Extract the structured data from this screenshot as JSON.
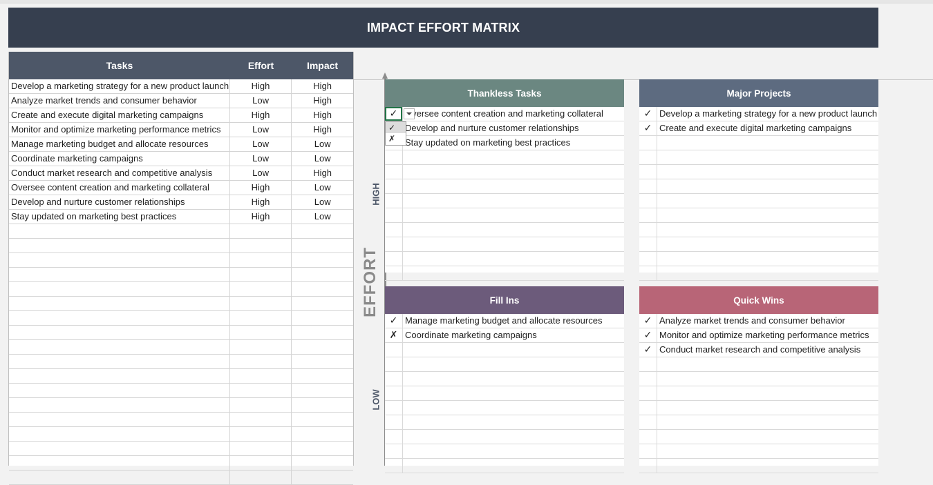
{
  "title": "IMPACT EFFORT MATRIX",
  "table": {
    "headers": {
      "task": "Tasks",
      "effort": "Effort",
      "impact": "Impact"
    },
    "rows": [
      {
        "task": "Develop a marketing strategy for a new product launch",
        "effort": "High",
        "impact": "High"
      },
      {
        "task": "Analyze market trends and consumer behavior",
        "effort": "Low",
        "impact": "High"
      },
      {
        "task": "Create and execute digital marketing campaigns",
        "effort": "High",
        "impact": "High"
      },
      {
        "task": "Monitor and optimize marketing performance metrics",
        "effort": "Low",
        "impact": "High"
      },
      {
        "task": "Manage marketing budget and allocate resources",
        "effort": "Low",
        "impact": "Low"
      },
      {
        "task": "Coordinate marketing campaigns",
        "effort": "Low",
        "impact": "Low"
      },
      {
        "task": "Conduct market research and competitive analysis",
        "effort": "Low",
        "impact": "High"
      },
      {
        "task": "Oversee content creation and marketing collateral",
        "effort": "High",
        "impact": "Low"
      },
      {
        "task": "Develop and nurture customer relationships",
        "effort": "High",
        "impact": "Low"
      },
      {
        "task": "Stay updated on marketing best practices",
        "effort": "High",
        "impact": "Low"
      },
      {
        "task": "",
        "effort": "",
        "impact": ""
      },
      {
        "task": "",
        "effort": "",
        "impact": ""
      },
      {
        "task": "",
        "effort": "",
        "impact": ""
      },
      {
        "task": "",
        "effort": "",
        "impact": ""
      },
      {
        "task": "",
        "effort": "",
        "impact": ""
      },
      {
        "task": "",
        "effort": "",
        "impact": ""
      },
      {
        "task": "",
        "effort": "",
        "impact": ""
      },
      {
        "task": "",
        "effort": "",
        "impact": ""
      },
      {
        "task": "",
        "effort": "",
        "impact": ""
      },
      {
        "task": "",
        "effort": "",
        "impact": ""
      },
      {
        "task": "",
        "effort": "",
        "impact": ""
      },
      {
        "task": "",
        "effort": "",
        "impact": ""
      },
      {
        "task": "",
        "effort": "",
        "impact": ""
      },
      {
        "task": "",
        "effort": "",
        "impact": ""
      },
      {
        "task": "",
        "effort": "",
        "impact": ""
      },
      {
        "task": "",
        "effort": "",
        "impact": ""
      },
      {
        "task": "",
        "effort": "",
        "impact": ""
      },
      {
        "task": "",
        "effort": "",
        "impact": ""
      }
    ]
  },
  "axis": {
    "label": "EFFORT",
    "high": "HIGH",
    "low": "LOW"
  },
  "quadrants": {
    "thankless": {
      "title": "Thankless Tasks",
      "color": "#6b8781",
      "rows": [
        {
          "mark": "✓",
          "text": "Oversee content creation and marketing collateral"
        },
        {
          "mark": "",
          "text": "Develop and nurture customer relationships"
        },
        {
          "mark": "",
          "text": "Stay updated on marketing best practices"
        },
        {
          "mark": "",
          "text": ""
        },
        {
          "mark": "",
          "text": ""
        },
        {
          "mark": "",
          "text": ""
        },
        {
          "mark": "",
          "text": ""
        },
        {
          "mark": "",
          "text": ""
        },
        {
          "mark": "",
          "text": ""
        },
        {
          "mark": "",
          "text": ""
        },
        {
          "mark": "",
          "text": ""
        },
        {
          "mark": "",
          "text": ""
        }
      ]
    },
    "major": {
      "title": "Major Projects",
      "color": "#5d6b80",
      "rows": [
        {
          "mark": "✓",
          "text": "Develop a marketing strategy for a new product launch"
        },
        {
          "mark": "✓",
          "text": "Create and execute digital marketing campaigns"
        },
        {
          "mark": "",
          "text": ""
        },
        {
          "mark": "",
          "text": ""
        },
        {
          "mark": "",
          "text": ""
        },
        {
          "mark": "",
          "text": ""
        },
        {
          "mark": "",
          "text": ""
        },
        {
          "mark": "",
          "text": ""
        },
        {
          "mark": "",
          "text": ""
        },
        {
          "mark": "",
          "text": ""
        },
        {
          "mark": "",
          "text": ""
        },
        {
          "mark": "",
          "text": ""
        }
      ]
    },
    "fillins": {
      "title": "Fill Ins",
      "color": "#6c5b7b",
      "rows": [
        {
          "mark": "✓",
          "text": "Manage marketing budget and allocate resources"
        },
        {
          "mark": "✗",
          "text": "Coordinate marketing campaigns"
        },
        {
          "mark": "",
          "text": ""
        },
        {
          "mark": "",
          "text": ""
        },
        {
          "mark": "",
          "text": ""
        },
        {
          "mark": "",
          "text": ""
        },
        {
          "mark": "",
          "text": ""
        },
        {
          "mark": "",
          "text": ""
        },
        {
          "mark": "",
          "text": ""
        },
        {
          "mark": "",
          "text": ""
        },
        {
          "mark": "",
          "text": ""
        }
      ]
    },
    "quickwins": {
      "title": "Quick Wins",
      "color": "#b86577",
      "rows": [
        {
          "mark": "✓",
          "text": "Analyze market trends and consumer behavior"
        },
        {
          "mark": "✓",
          "text": "Monitor and optimize marketing performance metrics"
        },
        {
          "mark": "✓",
          "text": "Conduct market research and competitive analysis"
        },
        {
          "mark": "",
          "text": ""
        },
        {
          "mark": "",
          "text": ""
        },
        {
          "mark": "",
          "text": ""
        },
        {
          "mark": "",
          "text": ""
        },
        {
          "mark": "",
          "text": ""
        },
        {
          "mark": "",
          "text": ""
        },
        {
          "mark": "",
          "text": ""
        },
        {
          "mark": "",
          "text": ""
        }
      ]
    }
  },
  "dropdown": {
    "options": [
      "✓",
      "✗"
    ]
  }
}
